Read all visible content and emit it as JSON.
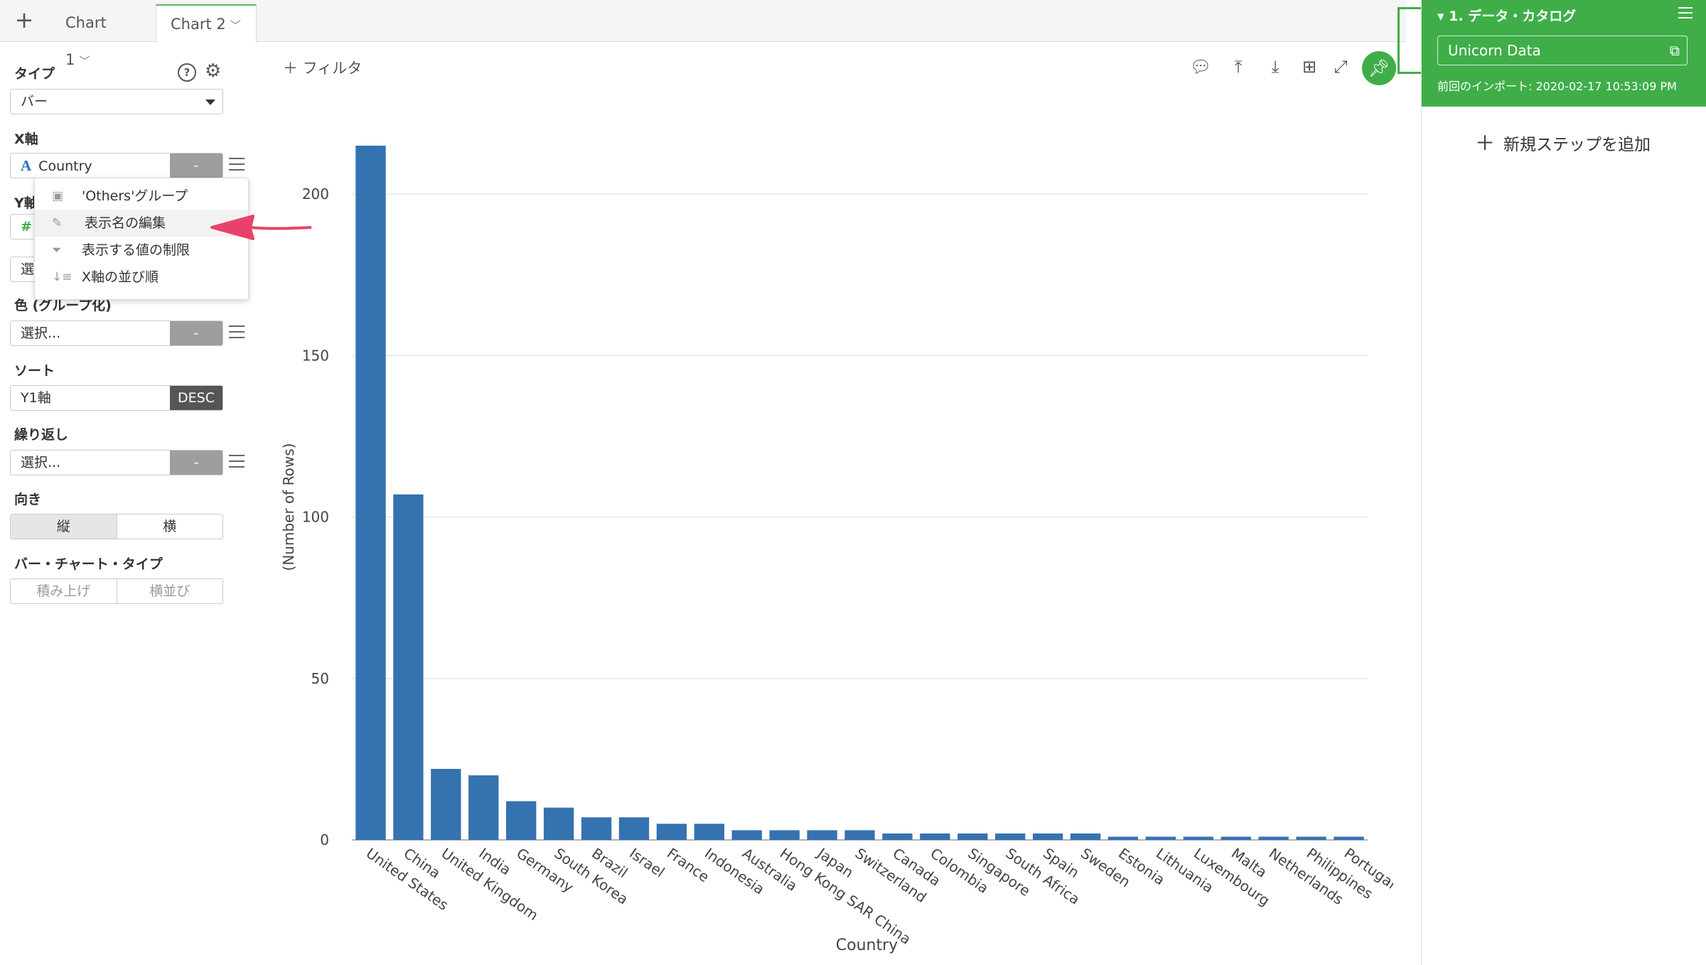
{
  "tabs": {
    "add_label": "+",
    "items": [
      {
        "label": "Chart 1"
      },
      {
        "label": "Chart 2"
      }
    ]
  },
  "left": {
    "type_label": "タイプ",
    "type_value": "バー",
    "help_icon": "?",
    "xaxis_label": "X軸",
    "xaxis_value": "Country",
    "xaxis_icon": "A",
    "xaxis_seg": "-",
    "yaxis_label_partial": "Y軸",
    "yaxis_icon": "#",
    "y_select_partial": "選",
    "color_label": "色 (グループ化)",
    "color_value": "選択...",
    "color_seg": "-",
    "sort_label": "ソート",
    "sort_value": "Y1軸",
    "sort_seg": "DESC",
    "repeat_label": "繰り返し",
    "repeat_value": "選択...",
    "repeat_seg": "-",
    "orient_label": "向き",
    "orient_vertical": "縦",
    "orient_horizontal": "横",
    "bartype_label": "バー・チャート・タイプ",
    "bartype_stack": "積み上げ",
    "bartype_side": "横並び"
  },
  "menu": {
    "items": [
      {
        "label": "'Others'グループ"
      },
      {
        "label": "表示名の編集"
      },
      {
        "label": "表示する値の制限"
      },
      {
        "label": "X軸の並び順"
      }
    ]
  },
  "toolbar": {
    "filter_label": "フィルタ"
  },
  "right": {
    "step_title": "▾ 1. データ・カタログ",
    "step_box": "Unicorn Data",
    "step_import": "前回のインポート: 2020-02-17 10:53:09 PM",
    "add_step": "新規ステップを追加"
  },
  "colors": {
    "bar": "#3572b0",
    "accent": "#3fae49",
    "arrow": "#e8426a"
  },
  "chart_data": {
    "type": "bar",
    "xlabel": "Country",
    "ylabel": "(Number of Rows)",
    "ylim": [
      0,
      215
    ],
    "yticks": [
      0,
      50,
      100,
      150,
      200
    ],
    "grid": true,
    "categories": [
      "United States",
      "China",
      "United Kingdom",
      "India",
      "Germany",
      "South Korea",
      "Brazil",
      "Israel",
      "France",
      "Indonesia",
      "Australia",
      "Hong Kong SAR China",
      "Japan",
      "Switzerland",
      "Canada",
      "Colombia",
      "Singapore",
      "South Africa",
      "Spain",
      "Sweden",
      "Estonia",
      "Lithuania",
      "Luxembourg",
      "Malta",
      "Netherlands",
      "Philippines",
      "Portugal"
    ],
    "values": [
      215,
      107,
      22,
      20,
      12,
      10,
      7,
      7,
      5,
      5,
      3,
      3,
      3,
      3,
      2,
      2,
      2,
      2,
      2,
      2,
      1,
      1,
      1,
      1,
      1,
      1,
      1
    ]
  }
}
